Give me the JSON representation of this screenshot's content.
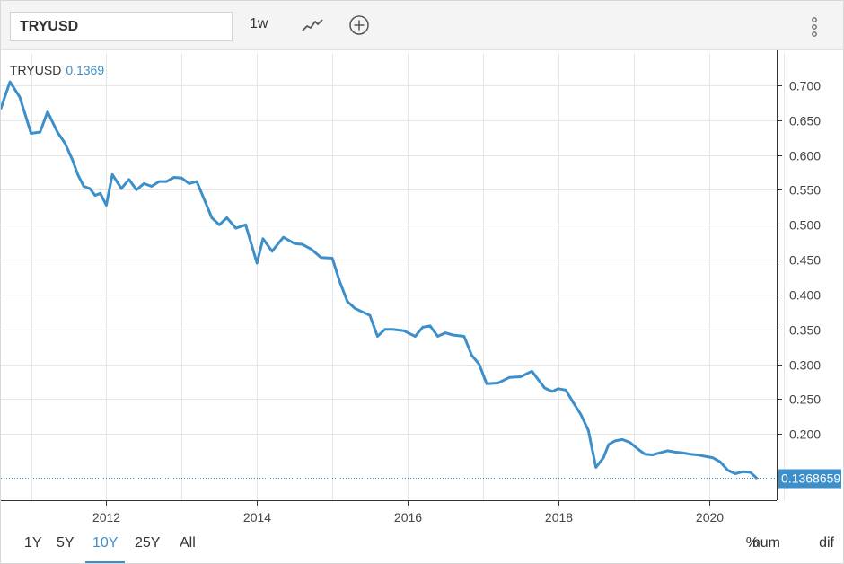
{
  "toolbar": {
    "symbol": "TRYUSD",
    "interval": "1w",
    "line_type_icon": "line-chart-icon",
    "compare_icon": "add-circle-icon",
    "menu_icon": "vertical-ellipsis-icon"
  },
  "legend": {
    "symbol": "TRYUSD",
    "value": "0.1369"
  },
  "last_price_label": "0.1368659",
  "ranges": [
    {
      "label": "1Y",
      "active": false
    },
    {
      "label": "5Y",
      "active": false
    },
    {
      "label": "10Y",
      "active": true
    },
    {
      "label": "25Y",
      "active": false
    },
    {
      "label": "All",
      "active": false
    }
  ],
  "modes": [
    "%",
    "num",
    "dif"
  ],
  "colors": {
    "line": "#3d8fca",
    "accent": "#3d8fca",
    "grid": "#e6e6e6"
  },
  "chart_data": {
    "type": "line",
    "series": [
      {
        "name": "TRYUSD",
        "x": [
          2010.6,
          2010.72,
          2010.85,
          2011.0,
          2011.12,
          2011.22,
          2011.35,
          2011.45,
          2011.55,
          2011.62,
          2011.7,
          2011.78,
          2011.85,
          2011.92,
          2012.0,
          2012.08,
          2012.2,
          2012.3,
          2012.4,
          2012.5,
          2012.6,
          2012.7,
          2012.8,
          2012.9,
          2013.0,
          2013.1,
          2013.2,
          2013.32,
          2013.4,
          2013.5,
          2013.6,
          2013.72,
          2013.85,
          2014.0,
          2014.08,
          2014.2,
          2014.35,
          2014.5,
          2014.6,
          2014.72,
          2014.85,
          2015.0,
          2015.1,
          2015.2,
          2015.3,
          2015.4,
          2015.5,
          2015.6,
          2015.7,
          2015.8,
          2015.95,
          2016.1,
          2016.2,
          2016.3,
          2016.4,
          2016.5,
          2016.6,
          2016.75,
          2016.85,
          2016.95,
          2017.05,
          2017.2,
          2017.35,
          2017.5,
          2017.65,
          2017.72,
          2017.82,
          2017.92,
          2018.0,
          2018.1,
          2018.2,
          2018.3,
          2018.4,
          2018.5,
          2018.6,
          2018.67,
          2018.75,
          2018.85,
          2018.95,
          2019.05,
          2019.15,
          2019.25,
          2019.35,
          2019.45,
          2019.55,
          2019.65,
          2019.75,
          2019.85,
          2019.95,
          2020.05,
          2020.15,
          2020.25,
          2020.35,
          2020.45,
          2020.55,
          2020.63
        ],
        "values": [
          0.667,
          0.705,
          0.683,
          0.631,
          0.633,
          0.662,
          0.633,
          0.617,
          0.593,
          0.572,
          0.555,
          0.552,
          0.542,
          0.545,
          0.528,
          0.572,
          0.552,
          0.565,
          0.55,
          0.559,
          0.555,
          0.562,
          0.562,
          0.568,
          0.567,
          0.559,
          0.562,
          0.531,
          0.51,
          0.5,
          0.51,
          0.495,
          0.5,
          0.445,
          0.48,
          0.462,
          0.482,
          0.473,
          0.472,
          0.465,
          0.453,
          0.452,
          0.418,
          0.39,
          0.38,
          0.375,
          0.37,
          0.34,
          0.35,
          0.35,
          0.348,
          0.34,
          0.353,
          0.355,
          0.34,
          0.345,
          0.342,
          0.34,
          0.313,
          0.3,
          0.272,
          0.273,
          0.281,
          0.282,
          0.29,
          0.28,
          0.266,
          0.261,
          0.265,
          0.263,
          0.245,
          0.228,
          0.205,
          0.152,
          0.166,
          0.185,
          0.19,
          0.192,
          0.188,
          0.179,
          0.171,
          0.17,
          0.173,
          0.176,
          0.174,
          0.173,
          0.171,
          0.17,
          0.168,
          0.166,
          0.16,
          0.148,
          0.143,
          0.146,
          0.145,
          0.137
        ]
      }
    ],
    "x_ticks": [
      2012,
      2014,
      2016,
      2018,
      2020
    ],
    "y_ticks": [
      "0.700",
      "0.650",
      "0.600",
      "0.550",
      "0.500",
      "0.450",
      "0.400",
      "0.350",
      "0.300",
      "0.250",
      "0.200"
    ],
    "xlim": [
      2010.6,
      2020.9
    ],
    "ylim": [
      0.105,
      0.745
    ],
    "last_value": 0.1368659,
    "grid": true
  }
}
